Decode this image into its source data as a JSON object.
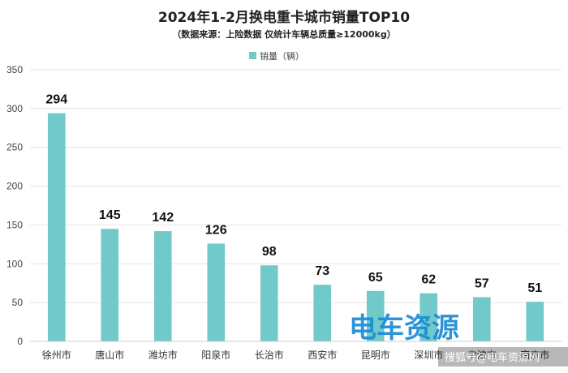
{
  "chart_data": {
    "type": "bar",
    "title": "2024年1-2月换电重卡城市销量TOP10",
    "subtitle": "（数据来源：上险数据  仅统计车辆总质量≥12000kg）",
    "legend": {
      "label": "销量（辆）",
      "position": "top-center"
    },
    "categories": [
      "徐州市",
      "唐山市",
      "潍坊市",
      "阳泉市",
      "长治市",
      "西安市",
      "昆明市",
      "深圳市",
      "宁波市",
      "南京市"
    ],
    "series": [
      {
        "name": "销量（辆）",
        "values": [
          294,
          145,
          142,
          126,
          98,
          73,
          65,
          62,
          57,
          51
        ]
      }
    ],
    "ylim": [
      0,
      350
    ],
    "yticks": [
      0,
      50,
      100,
      150,
      200,
      250,
      300,
      350
    ],
    "grid": true,
    "bar_color": "#72c9c9"
  },
  "watermark": {
    "logo": "电车资源",
    "caption": "搜狐号@电车资源网",
    "color": "#1a8bd6"
  }
}
